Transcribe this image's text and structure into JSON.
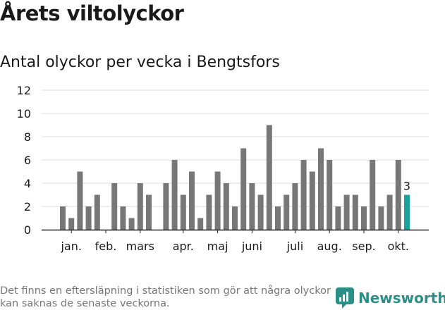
{
  "title": "Årets viltolyckor",
  "subtitle": "Antal olyckor per vecka i Bengtsfors",
  "footnote": "Det finns en eftersläpning i statistiken som gör att några olyckor kan saknas de senaste veckorna.",
  "brand": {
    "name": "Newsworthy",
    "icon": "newsworthy-logo-icon"
  },
  "colors": {
    "bar": "#777777",
    "highlight": "#1aa39a",
    "grid": "#dddddd",
    "axis": "#222222",
    "text": "#1a1a1a"
  },
  "chart_data": {
    "type": "bar",
    "xlabel": "",
    "ylabel": "",
    "ylim": [
      0,
      12
    ],
    "yticks": [
      0,
      2,
      4,
      6,
      8,
      10,
      12
    ],
    "grid": true,
    "x": [
      1,
      2,
      3,
      4,
      5,
      6,
      7,
      8,
      9,
      10,
      11,
      12,
      13,
      14,
      15,
      16,
      17,
      18,
      19,
      20,
      21,
      22,
      23,
      24,
      25,
      26,
      27,
      28,
      29,
      30,
      31,
      32,
      33,
      34,
      35,
      36,
      37,
      38,
      39,
      40,
      41
    ],
    "values": [
      2,
      1,
      5,
      2,
      3,
      0,
      4,
      2,
      1,
      4,
      3,
      0,
      4,
      6,
      3,
      5,
      1,
      3,
      5,
      4,
      2,
      7,
      4,
      3,
      9,
      2,
      3,
      4,
      6,
      5,
      7,
      6,
      2,
      3,
      3,
      2,
      6,
      2,
      3,
      6,
      3
    ],
    "highlight_index": 40,
    "highlight_label": "3",
    "month_labels": [
      {
        "label": "jan.",
        "week": 2
      },
      {
        "label": "feb.",
        "week": 6
      },
      {
        "label": "mars",
        "week": 10
      },
      {
        "label": "apr.",
        "week": 15
      },
      {
        "label": "maj",
        "week": 19
      },
      {
        "label": "juni",
        "week": 23
      },
      {
        "label": "juli",
        "week": 28
      },
      {
        "label": "aug.",
        "week": 32
      },
      {
        "label": "sep.",
        "week": 36
      },
      {
        "label": "okt.",
        "week": 40
      }
    ]
  }
}
